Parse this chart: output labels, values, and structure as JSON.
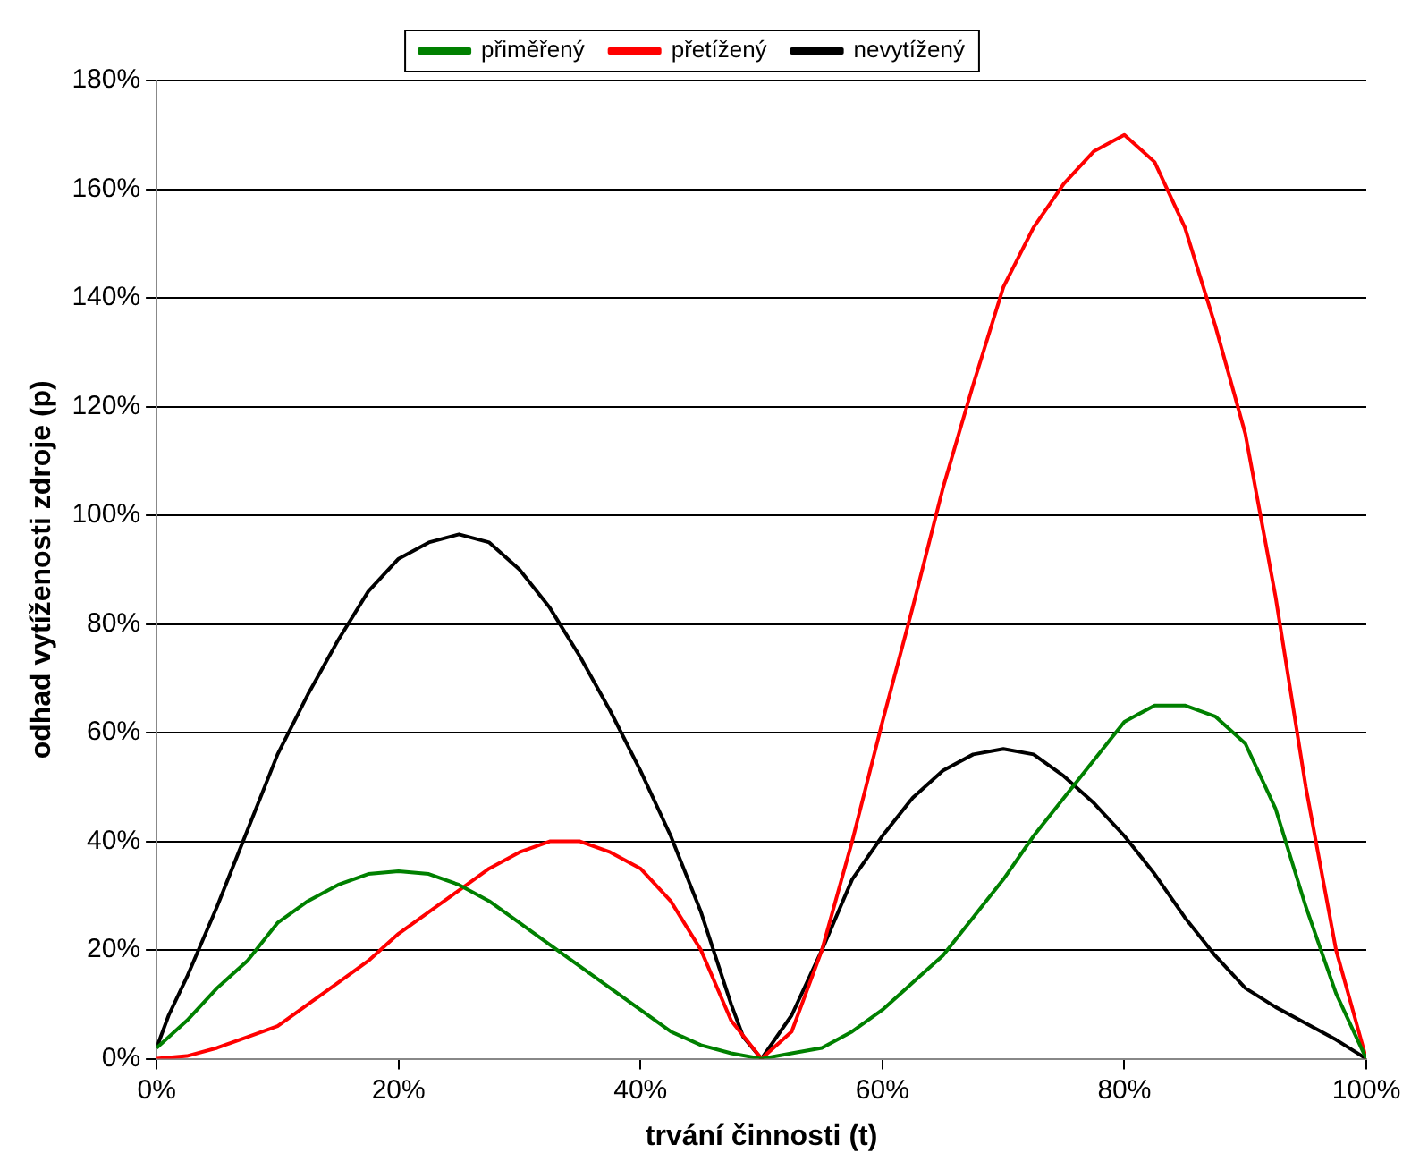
{
  "chart_data": {
    "type": "line",
    "xlabel": "trvání činnosti (t)",
    "ylabel": "odhad vytíženosti zdroje (p)",
    "xlim": [
      0,
      100
    ],
    "ylim": [
      0,
      180
    ],
    "xticks": [
      {
        "value": 0,
        "label": "0%"
      },
      {
        "value": 20,
        "label": "20%"
      },
      {
        "value": 40,
        "label": "40%"
      },
      {
        "value": 60,
        "label": "60%"
      },
      {
        "value": 80,
        "label": "80%"
      },
      {
        "value": 100,
        "label": "100%"
      }
    ],
    "yticks": [
      {
        "value": 0,
        "label": "0%"
      },
      {
        "value": 20,
        "label": "20%"
      },
      {
        "value": 40,
        "label": "40%"
      },
      {
        "value": 60,
        "label": "60%"
      },
      {
        "value": 80,
        "label": "80%"
      },
      {
        "value": 100,
        "label": "100%"
      },
      {
        "value": 120,
        "label": "120%"
      },
      {
        "value": 140,
        "label": "140%"
      },
      {
        "value": 160,
        "label": "160%"
      },
      {
        "value": 180,
        "label": "180%"
      }
    ],
    "grid": "y",
    "legend": "top",
    "marker": "none",
    "line_style": "solid",
    "series": [
      {
        "name": "přiměřený",
        "color": "#008000",
        "x": [
          0,
          2.5,
          5,
          7.5,
          10,
          12.5,
          15,
          17.5,
          20,
          22.5,
          25,
          27.5,
          30,
          32.5,
          35,
          37.5,
          40,
          42.5,
          45,
          47.5,
          50,
          52.5,
          55,
          57.5,
          60,
          62.5,
          65,
          67.5,
          70,
          72.5,
          75,
          77.5,
          80,
          82.5,
          85,
          87.5,
          90,
          92.5,
          95,
          97.5,
          100
        ],
        "values": [
          2,
          7,
          13,
          18,
          25,
          29,
          32,
          34,
          34.5,
          34,
          32,
          29,
          25,
          21,
          17,
          13,
          9,
          5,
          2.5,
          1,
          0,
          1,
          2,
          5,
          9,
          14,
          19,
          26,
          33,
          41,
          48,
          55,
          62,
          65,
          65,
          63,
          58,
          46,
          28,
          12,
          0
        ]
      },
      {
        "name": "přetížený",
        "color": "#ff0000",
        "x": [
          0,
          2.5,
          5,
          7.5,
          10,
          12.5,
          15,
          17.5,
          20,
          22.5,
          25,
          27.5,
          30,
          32.5,
          35,
          37.5,
          40,
          42.5,
          45,
          47.5,
          50,
          52.5,
          55,
          57.5,
          60,
          62.5,
          65,
          67.5,
          70,
          72.5,
          75,
          77.5,
          80,
          82.5,
          85,
          87.5,
          90,
          92.5,
          95,
          97.5,
          100
        ],
        "values": [
          0,
          0.5,
          2,
          4,
          6,
          10,
          14,
          18,
          23,
          27,
          31,
          35,
          38,
          40,
          40,
          38,
          35,
          29,
          20,
          7,
          0,
          5,
          20,
          40,
          62,
          83,
          105,
          124,
          142,
          153,
          161,
          167,
          170,
          165,
          153,
          135,
          115,
          85,
          50,
          20,
          0
        ]
      },
      {
        "name": "nevytížený",
        "color": "#000000",
        "x": [
          0,
          1,
          2.5,
          5,
          7.5,
          10,
          12.5,
          15,
          17.5,
          20,
          22.5,
          25,
          27.5,
          30,
          32.5,
          35,
          37.5,
          40,
          42.5,
          45,
          47.5,
          48.5,
          50,
          52.5,
          55,
          57.5,
          60,
          62.5,
          65,
          67.5,
          70,
          72.5,
          75,
          77.5,
          80,
          82.5,
          85,
          87.5,
          90,
          92.5,
          95,
          97.5,
          100
        ],
        "values": [
          2,
          8,
          15,
          28,
          42,
          56,
          67,
          77,
          86,
          92,
          95,
          96.5,
          95,
          90,
          83,
          74,
          64,
          53,
          41,
          27,
          10,
          4,
          0,
          8,
          20,
          33,
          41,
          48,
          53,
          56,
          57,
          56,
          52,
          47,
          41,
          34,
          26,
          19,
          13,
          9.5,
          6.5,
          3.5,
          0
        ]
      }
    ]
  }
}
